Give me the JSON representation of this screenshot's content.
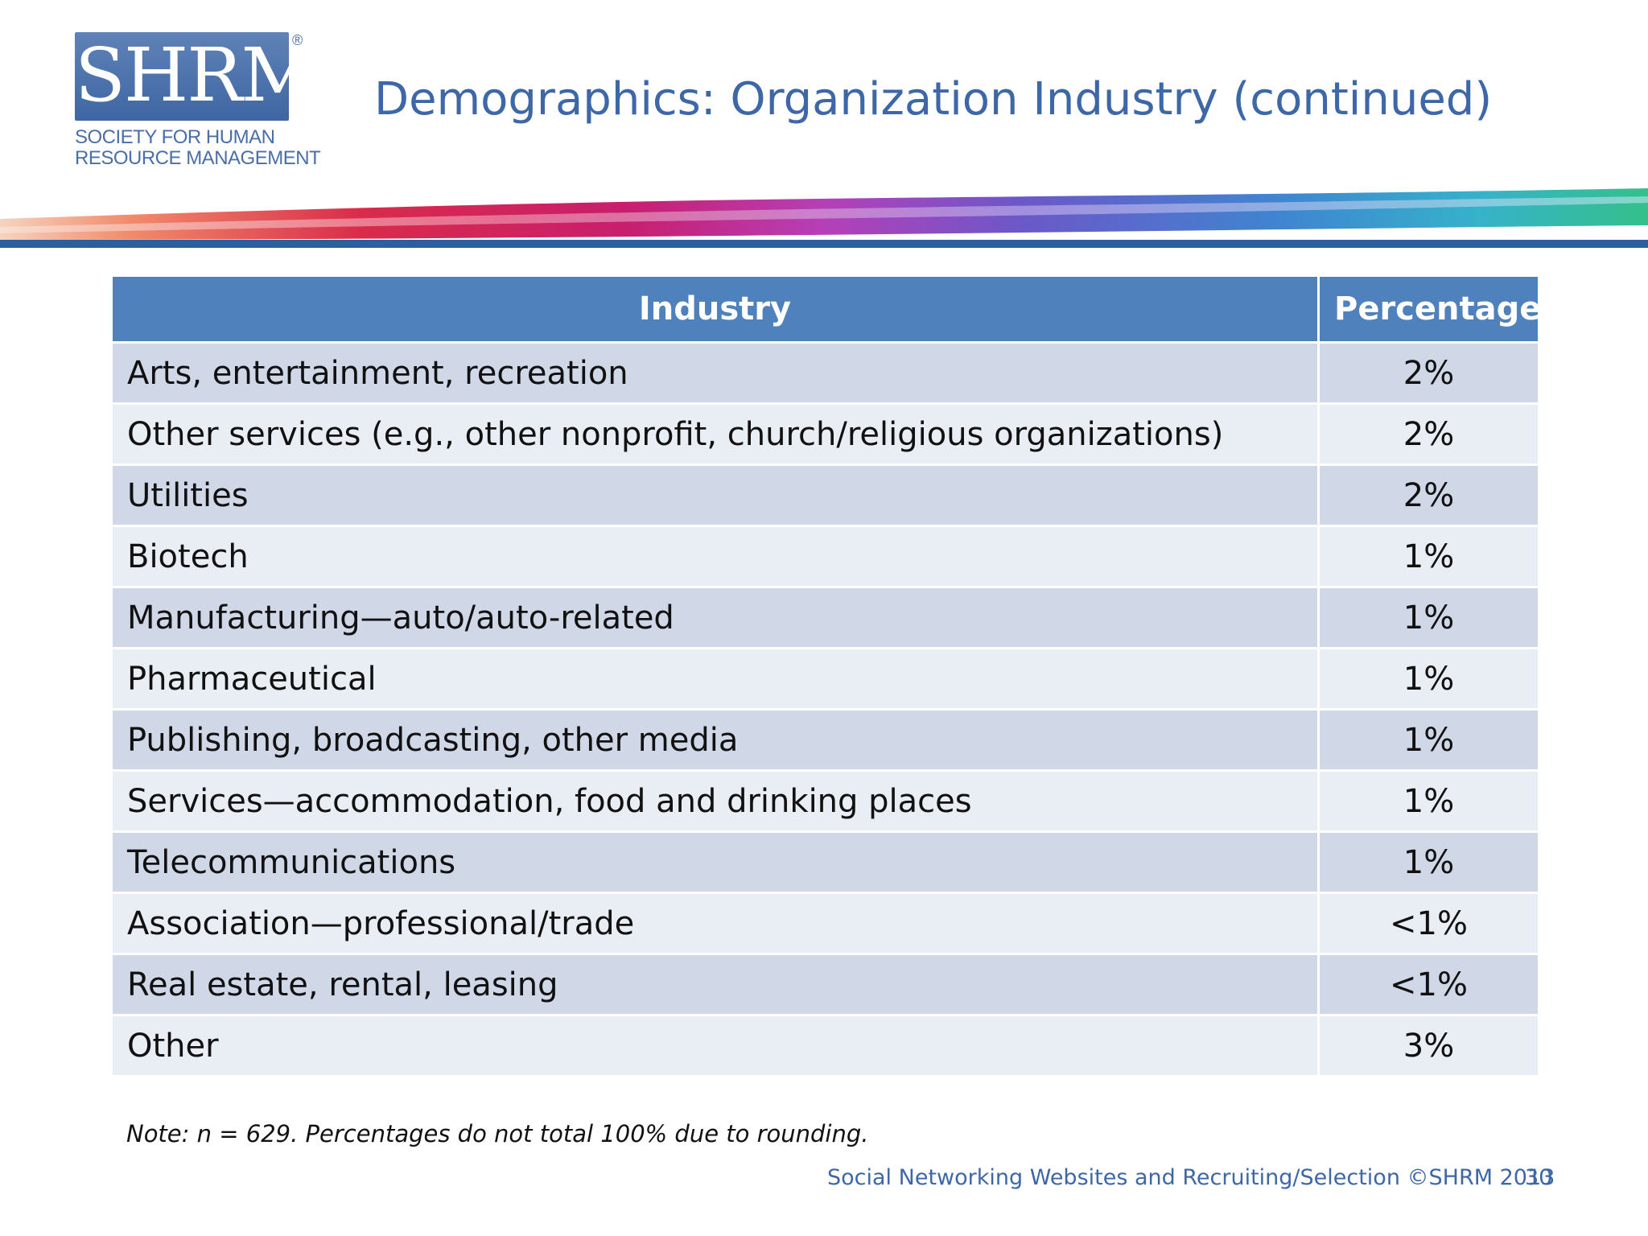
{
  "logo": {
    "letters": "SHRM",
    "registered": "®",
    "line1": "SOCIETY FOR HUMAN",
    "line2": "RESOURCE MANAGEMENT"
  },
  "title": "Demographics: Organization Industry (continued)",
  "table": {
    "headers": [
      "Industry",
      "Percentage"
    ],
    "rows": [
      {
        "industry": "Arts, entertainment, recreation",
        "percentage": "2%"
      },
      {
        "industry": "Other services (e.g., other nonprofit, church/religious organizations)",
        "percentage": "2%"
      },
      {
        "industry": "Utilities",
        "percentage": "2%"
      },
      {
        "industry": "Biotech",
        "percentage": "1%"
      },
      {
        "industry": "Manufacturing—auto/auto-related",
        "percentage": "1%"
      },
      {
        "industry": "Pharmaceutical",
        "percentage": "1%"
      },
      {
        "industry": "Publishing, broadcasting, other media",
        "percentage": "1%"
      },
      {
        "industry": "Services—accommodation, food and drinking places",
        "percentage": "1%"
      },
      {
        "industry": "Telecommunications",
        "percentage": "1%"
      },
      {
        "industry": "Association—professional/trade",
        "percentage": "<1%"
      },
      {
        "industry": "Real estate, rental, leasing",
        "percentage": "<1%"
      },
      {
        "industry": "Other",
        "percentage": "3%"
      }
    ]
  },
  "note": "Note: n = 629. Percentages do not total 100% due to rounding.",
  "footer": "Social Networking Websites and Recruiting/Selection ©SHRM 2013",
  "page_number": "30",
  "colors": {
    "header_bg": "#4f81bd",
    "row_odd": "#d0d8e8",
    "row_even": "#e9edf4",
    "accent": "#3d67a7"
  }
}
